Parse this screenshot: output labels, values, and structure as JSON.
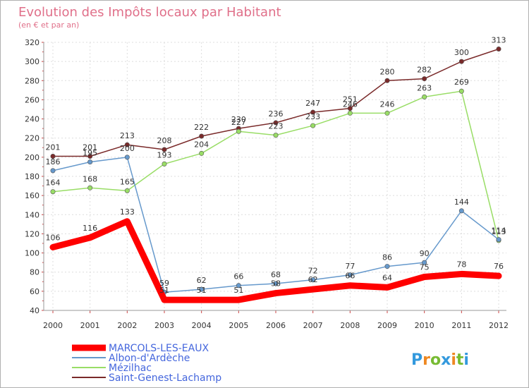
{
  "chart_data": {
    "type": "line",
    "title": "Evolution des Impôts locaux par Habitant",
    "subtitle": "(en € et par an)",
    "xlabel": "",
    "ylabel": "",
    "ylim": [
      40,
      320
    ],
    "yticks": [
      40,
      60,
      80,
      100,
      120,
      140,
      160,
      180,
      200,
      220,
      240,
      260,
      280,
      300,
      320
    ],
    "grid": true,
    "legend_position": "bottom-left",
    "categories": [
      "2000",
      "2001",
      "2002",
      "2003",
      "2004",
      "2005",
      "2006",
      "2007",
      "2008",
      "2009",
      "2010",
      "2011",
      "2012"
    ],
    "series": [
      {
        "name": "MARCOLS-LES-EAUX",
        "color": "#ff0000",
        "values": [
          106,
          116,
          133,
          51,
          51,
          51,
          58,
          62,
          66,
          64,
          75,
          78,
          76
        ]
      },
      {
        "name": "Albon-d'Ardèche",
        "color": "#6699cc",
        "values": [
          186,
          195,
          200,
          59,
          62,
          66,
          68,
          72,
          77,
          86,
          90,
          144,
          114
        ]
      },
      {
        "name": "Mézilhac",
        "color": "#99dd66",
        "values": [
          164,
          168,
          165,
          193,
          204,
          227,
          223,
          233,
          246,
          246,
          263,
          269,
          113
        ]
      },
      {
        "name": "Saint-Genest-Lachamp",
        "color": "#7a2a2a",
        "values": [
          201,
          201,
          213,
          208,
          222,
          230,
          236,
          247,
          251,
          280,
          282,
          300,
          313
        ]
      }
    ]
  },
  "logo": {
    "text": "Proxiti",
    "letters": [
      "P",
      "r",
      "o",
      "x",
      "i",
      "t",
      "i"
    ],
    "colors": [
      "#3399dd",
      "#ee8822",
      "#77bb33",
      "#3399dd",
      "#ee8822",
      "#77bb33",
      "#3399dd"
    ]
  }
}
